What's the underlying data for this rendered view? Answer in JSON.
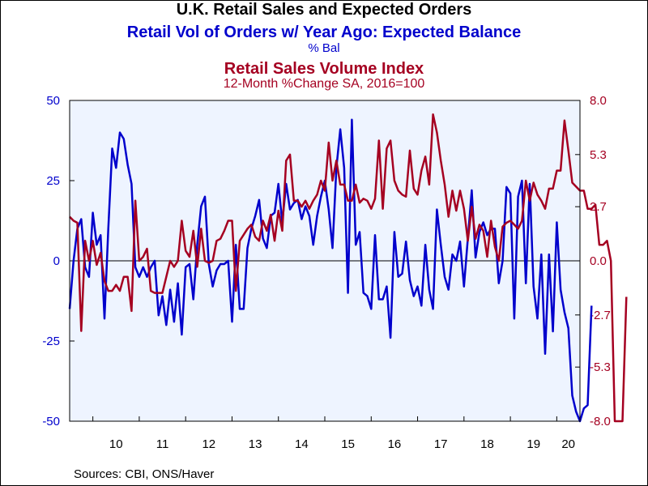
{
  "header": {
    "title": "U.K. Retail Sales and Expected Orders",
    "subtitle": "Retail Vol of Orders w/ Year Ago: Expected Balance",
    "left_unit": "% Bal",
    "right_title": "Retail Sales Volume Index",
    "right_unit": "12-Month %Change      SA, 2016=100"
  },
  "footer": {
    "source": "Sources:  CBI, ONS/Haver"
  },
  "colors": {
    "plot_bg": "#eef4ff",
    "orders_line": "#0000cc",
    "sales_line": "#a50021",
    "axis": "#000000",
    "zero_line": "#000000"
  },
  "chart_data": {
    "type": "line",
    "title": "U.K. Retail Sales and Expected Orders",
    "x_start": "2009-07",
    "x_end": "2020-06",
    "frequency": "monthly",
    "x_tick_labels": [
      "10",
      "11",
      "12",
      "13",
      "14",
      "15",
      "16",
      "17",
      "18",
      "19",
      "20"
    ],
    "left_axis": {
      "label": "% Bal",
      "ylim": [
        -50,
        50
      ],
      "ticks": [
        "50",
        "25",
        "0",
        "-25",
        "-50"
      ],
      "tick_values": [
        50,
        25,
        0,
        -25,
        -50
      ]
    },
    "right_axis": {
      "label": "12-Month %Change",
      "ylim": [
        -8.0,
        8.0
      ],
      "ticks": [
        "8.0",
        "5.3",
        "2.7",
        "0.0",
        "-2.7",
        "-5.3",
        "-8.0"
      ],
      "tick_values": [
        8.0,
        5.3,
        2.7,
        0.0,
        -2.7,
        -5.3,
        -8.0
      ]
    },
    "grid": false,
    "series": [
      {
        "name": "Retail Vol of Orders w/ Year Ago: Expected Balance",
        "axis": "left",
        "values": [
          -15,
          0,
          10,
          13,
          -2,
          -5,
          15,
          5,
          8,
          -18,
          10,
          35,
          29,
          40,
          38,
          30,
          24,
          -2,
          -5,
          -2,
          -5,
          -2,
          0,
          -17,
          -11,
          -20,
          -9,
          -19,
          -7,
          -23,
          -2,
          -1,
          -12,
          5,
          17,
          20,
          -1,
          -8,
          -3,
          -1,
          -1,
          0,
          -19,
          5,
          -15,
          -15,
          4,
          10,
          14,
          19,
          7,
          4,
          14,
          15,
          24,
          12,
          24,
          16,
          18,
          19,
          13,
          17,
          14,
          5,
          14,
          20,
          25,
          16,
          4,
          29,
          41,
          29,
          -10,
          44,
          5,
          9,
          -10,
          -11,
          -15,
          8,
          -12,
          -12,
          -8,
          -24,
          9,
          -5,
          -4,
          6,
          -6,
          -11,
          -8,
          -14,
          5,
          -9,
          -15,
          16,
          5,
          -5,
          -9,
          2,
          0,
          6,
          -8,
          7,
          22,
          1,
          9,
          12,
          8,
          10,
          10,
          -7,
          0,
          23,
          21,
          -18,
          20,
          25,
          -7,
          24,
          -8,
          -18,
          2,
          -29,
          2,
          -22,
          12,
          -9,
          -16,
          -21,
          -42,
          -47,
          -50,
          -46,
          -45,
          -14
        ]
      },
      {
        "name": "Retail Sales Volume Index",
        "axis": "right",
        "values": [
          2.2,
          2.0,
          1.9,
          -3.5,
          1.0,
          0.0,
          1.0,
          -0.2,
          0.4,
          -1.0,
          -1.5,
          -1.5,
          -1.2,
          -1.5,
          -0.8,
          -0.8,
          -2.5,
          3.0,
          0.0,
          0.2,
          0.6,
          -1.5,
          -1.6,
          -1.6,
          -1.6,
          -0.8,
          0.0,
          -0.3,
          0.0,
          2.0,
          0.5,
          0.2,
          1.5,
          -0.3,
          1.6,
          0.0,
          -0.1,
          0.0,
          1.0,
          1.1,
          1.5,
          2.0,
          2.0,
          -1.5,
          1.0,
          1.3,
          1.6,
          1.8,
          1.2,
          1.0,
          2.0,
          1.5,
          2.3,
          1.0,
          2.5,
          1.5,
          5.0,
          5.3,
          3.0,
          3.0,
          2.7,
          3.0,
          2.6,
          3.0,
          3.3,
          4.0,
          3.5,
          5.9,
          4.0,
          5.0,
          3.8,
          3.8,
          3.0,
          3.0,
          3.8,
          2.9,
          3.1,
          3.0,
          2.6,
          3.1,
          6.0,
          2.6,
          5.6,
          6.0,
          4.0,
          3.5,
          3.3,
          3.2,
          5.5,
          3.6,
          3.3,
          4.5,
          5.2,
          3.8,
          7.3,
          6.4,
          5.0,
          3.8,
          2.2,
          3.5,
          2.5,
          3.5,
          2.6,
          1.0,
          2.7,
          1.1,
          1.8,
          1.5,
          0.2,
          2.0,
          0.7,
          0.0,
          1.7,
          1.9,
          2.0,
          1.8,
          1.6,
          2.0,
          4.0,
          3.0,
          3.9,
          3.3,
          3.0,
          2.6,
          3.6,
          3.6,
          4.5,
          4.5,
          7.0,
          5.5,
          3.9,
          3.7,
          3.5,
          3.5,
          2.6,
          2.6,
          2.8,
          0.8,
          0.8,
          1.0,
          0.0,
          -8.3,
          -8.5,
          -8.5,
          -1.8
        ]
      }
    ]
  }
}
